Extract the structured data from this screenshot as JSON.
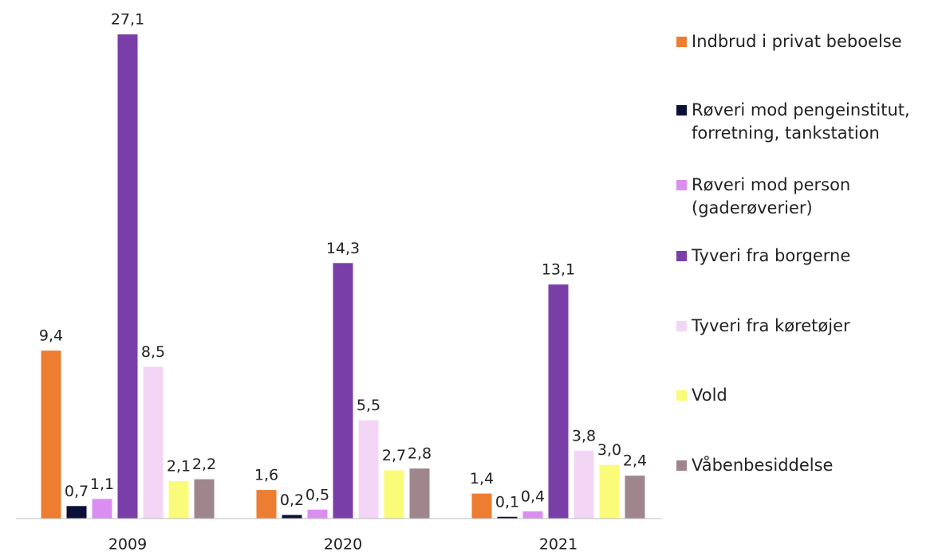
{
  "chart_data": {
    "type": "bar",
    "categories": [
      "2009",
      "2020",
      "2021"
    ],
    "ylim": [
      0,
      28
    ],
    "series": [
      {
        "name": "Indbrud i privat beboelse",
        "color": "#ed7d31",
        "values": [
          9.4,
          1.6,
          1.4
        ],
        "value_labels": [
          "9,4",
          "1,6",
          "1,4"
        ]
      },
      {
        "name": "Røveri mod pengeinstitut, forretning, tankstation",
        "color": "#0b1038",
        "values": [
          0.7,
          0.2,
          0.1
        ],
        "value_labels": [
          "0,7",
          "0,2",
          "0,1"
        ]
      },
      {
        "name": "Røveri mod person (gaderøverier)",
        "color": "#da8ff0",
        "values": [
          1.1,
          0.5,
          0.4
        ],
        "value_labels": [
          "1,1",
          "0,5",
          "0,4"
        ]
      },
      {
        "name": "Tyveri fra borgerne",
        "color": "#7a3ea8",
        "values": [
          27.1,
          14.3,
          13.1
        ],
        "value_labels": [
          "27,1",
          "14,3",
          "13,1"
        ]
      },
      {
        "name": "Tyveri fra køretøjer",
        "color": "#f3d6f6",
        "values": [
          8.5,
          5.5,
          3.8
        ],
        "value_labels": [
          "8,5",
          "5,5",
          "3,8"
        ]
      },
      {
        "name": "Vold",
        "color": "#fbfb7a",
        "values": [
          2.1,
          2.7,
          3.0
        ],
        "value_labels": [
          "2,1",
          "2,7",
          "3,0"
        ]
      },
      {
        "name": "Våbenbesiddelse",
        "color": "#9e868c",
        "values": [
          2.2,
          2.8,
          2.4
        ],
        "value_labels": [
          "2,2",
          "2,8",
          "2,4"
        ]
      }
    ],
    "legend": "right"
  }
}
